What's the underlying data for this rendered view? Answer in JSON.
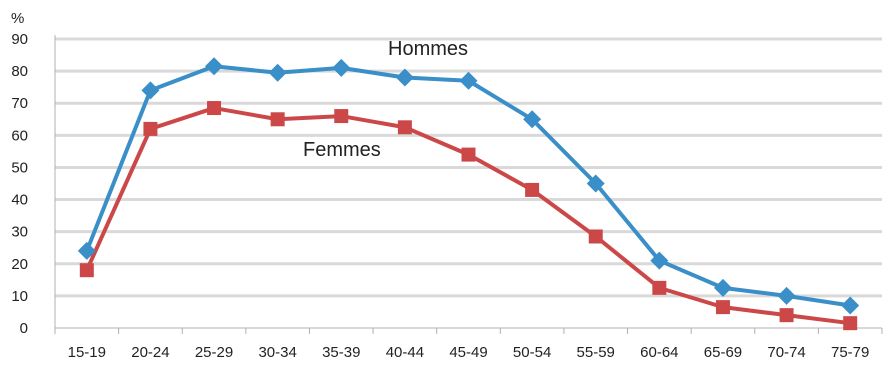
{
  "chart_data": {
    "type": "line",
    "title": "",
    "xlabel": "",
    "ylabel": "%",
    "ylim": [
      0,
      90
    ],
    "yticks": [
      0,
      10,
      20,
      30,
      40,
      50,
      60,
      70,
      80,
      90
    ],
    "grid": true,
    "categories": [
      "15-19",
      "20-24",
      "25-29",
      "30-34",
      "35-39",
      "40-44",
      "45-49",
      "50-54",
      "55-59",
      "60-64",
      "65-69",
      "70-74",
      "75-79"
    ],
    "series": [
      {
        "name": "Hommes",
        "color": "#3a8fc8",
        "marker": "diamond",
        "values": [
          24,
          74,
          81.5,
          79.5,
          81,
          78,
          77,
          65,
          45,
          21,
          12.5,
          10,
          7
        ]
      },
      {
        "name": "Femmes",
        "color": "#cc4848",
        "marker": "square",
        "values": [
          18,
          62,
          68.5,
          65,
          66,
          62.5,
          54,
          43,
          28.5,
          12.5,
          6.5,
          4,
          1.5
        ]
      }
    ]
  }
}
